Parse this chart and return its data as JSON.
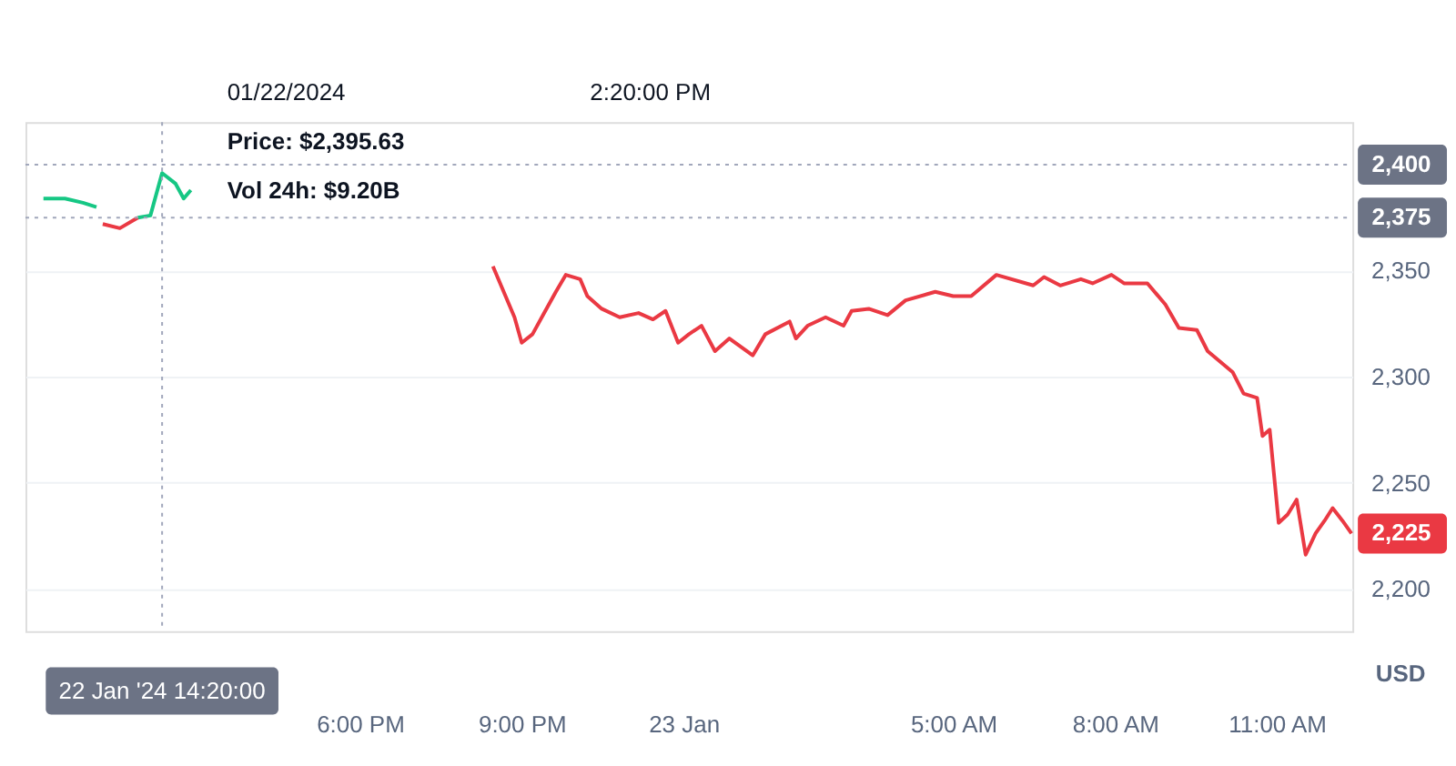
{
  "chart_data": {
    "type": "line",
    "x": [
      "2024-01-22T12:08",
      "2024-01-22T12:32",
      "2024-01-22T12:52",
      "2024-01-22T13:07",
      "2024-01-22T13:14",
      "2024-01-22T13:33",
      "2024-01-22T13:53",
      "2024-01-22T14:07",
      "2024-01-22T14:20",
      "2024-01-22T14:35",
      "2024-01-22T14:44",
      "2024-01-22T14:52",
      "2024-01-22T15:30",
      "2024-01-22T16:25",
      "2024-01-22T16:41",
      "2024-01-22T18:30",
      "2024-01-22T20:23",
      "2024-01-22T20:28",
      "2024-01-22T20:40",
      "2024-01-22T20:52",
      "2024-01-22T21:00",
      "2024-01-22T21:12",
      "2024-01-22T21:25",
      "2024-01-22T21:38",
      "2024-01-22T21:49",
      "2024-01-22T22:05",
      "2024-01-22T22:13",
      "2024-01-22T22:29",
      "2024-01-22T22:49",
      "2024-01-22T23:10",
      "2024-01-22T23:26",
      "2024-01-22T23:40",
      "2024-01-22T23:54",
      "2024-01-23T00:06",
      "2024-01-23T00:20",
      "2024-01-23T00:35",
      "2024-01-23T00:51",
      "2024-01-23T01:17",
      "2024-01-23T01:31",
      "2024-01-23T01:58",
      "2024-01-23T02:05",
      "2024-01-23T02:18",
      "2024-01-23T02:38",
      "2024-01-23T02:58",
      "2024-01-23T03:07",
      "2024-01-23T03:26",
      "2024-01-23T03:47",
      "2024-01-23T04:07",
      "2024-01-23T04:40",
      "2024-01-23T05:00",
      "2024-01-23T05:20",
      "2024-01-23T05:48",
      "2024-01-23T06:29",
      "2024-01-23T06:41",
      "2024-01-23T06:59",
      "2024-01-23T07:22",
      "2024-01-23T07:35",
      "2024-01-23T07:56",
      "2024-01-23T08:10",
      "2024-01-23T08:36",
      "2024-01-23T08:56",
      "2024-01-23T09:11",
      "2024-01-23T09:31",
      "2024-01-23T09:43",
      "2024-01-23T10:11",
      "2024-01-23T10:23",
      "2024-01-23T10:38",
      "2024-01-23T10:44",
      "2024-01-23T10:52",
      "2024-01-23T11:02",
      "2024-01-23T11:12",
      "2024-01-23T11:22",
      "2024-01-23T11:32",
      "2024-01-23T11:43",
      "2024-01-23T11:53",
      "2024-01-23T12:02",
      "2024-01-23T12:13",
      "2024-01-23T12:23"
    ],
    "series": [
      {
        "color": "#16c784",
        "values": [
          2384,
          2384,
          2382,
          2380,
          null,
          null,
          2375,
          2376,
          2396,
          2391,
          2384,
          2388,
          null,
          null,
          null,
          null,
          null,
          null,
          null,
          null,
          null,
          null,
          null,
          null,
          null,
          null,
          null,
          null,
          null,
          null,
          null,
          null,
          null,
          null,
          null,
          null,
          null,
          null,
          null,
          null,
          null,
          null,
          null,
          null,
          null,
          null,
          null,
          null,
          null,
          null,
          null,
          null,
          null,
          null,
          null,
          null,
          null,
          null,
          null,
          null,
          null,
          null,
          null,
          null,
          null,
          null,
          null,
          null,
          null,
          null,
          null,
          null,
          null,
          null,
          null,
          null,
          null,
          null
        ]
      },
      {
        "color": "#ea3943",
        "values": [
          null,
          null,
          null,
          null,
          2372,
          2370,
          2375,
          null,
          null,
          null,
          null,
          null,
          null,
          null,
          null,
          null,
          null,
          2352,
          2340,
          2328,
          2316,
          2320,
          2330,
          2340,
          2348,
          2346,
          2338,
          2332,
          2328,
          2330,
          2327,
          2331,
          2316,
          2320,
          2324,
          2312,
          2318,
          2310,
          2320,
          2326,
          2318,
          2324,
          2328,
          2324,
          2331,
          2332,
          2329,
          2336,
          2340,
          2338,
          2338,
          2348,
          2343,
          2347,
          2343,
          2346,
          2344,
          2348,
          2344,
          2344,
          2334,
          2323,
          2322,
          2312,
          2302,
          2292,
          2290,
          2272,
          2275,
          2231,
          2235,
          2242,
          2216,
          2226,
          2232,
          2238,
          2232,
          2226
        ]
      }
    ],
    "xlim": [
      "2024-01-22T11:48",
      "2024-01-23T12:24"
    ],
    "xticks": [
      {
        "value": "2024-01-22T18:00",
        "label": "6:00 PM"
      },
      {
        "value": "2024-01-22T21:00",
        "label": "9:00 PM"
      },
      {
        "value": "2024-01-23T00:00",
        "label": "23 Jan"
      },
      {
        "value": "2024-01-23T05:00",
        "label": "5:00 AM"
      },
      {
        "value": "2024-01-23T08:00",
        "label": "8:00 AM"
      },
      {
        "value": "2024-01-23T11:00",
        "label": "11:00 AM"
      }
    ],
    "ylim": [
      2180,
      2420
    ],
    "yticks": [
      {
        "value": 2200,
        "label": "2,200"
      },
      {
        "value": 2250,
        "label": "2,250"
      },
      {
        "value": 2300,
        "label": "2,300"
      },
      {
        "value": 2350,
        "label": "2,350"
      }
    ],
    "ylabel": "USD",
    "grid": "y",
    "line_style": "solid",
    "marker": "none",
    "ref_lines": [
      {
        "axis": "y",
        "value": 2375,
        "label": "2,375",
        "line_style": "dotted",
        "color": "#a1a7bb"
      },
      {
        "axis": "y",
        "value": 2400,
        "label": "2,400",
        "line_style": "dotted",
        "color": "#a1a7bb"
      },
      {
        "axis": "x",
        "value": "2024-01-22T14:20",
        "label": "22 Jan '24 14:20:00",
        "line_style": "dotted",
        "color": "#a1a7bb"
      }
    ],
    "annotations": [
      "01/22/2024",
      "2:20:00 PM",
      "Price: $2,395.63",
      "Vol 24h: $9.20B",
      {
        "text": "2,225",
        "x": "2024-01-23T12:23",
        "y": 2226
      }
    ]
  }
}
